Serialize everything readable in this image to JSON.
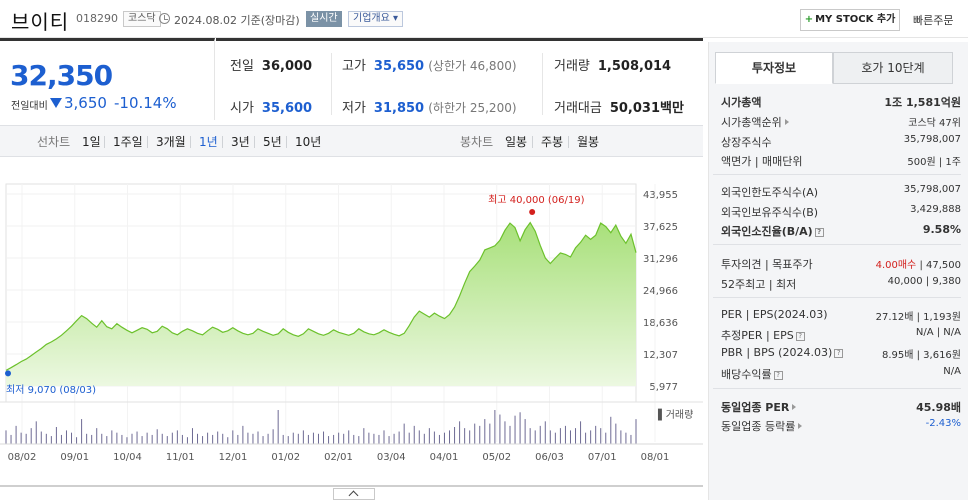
{
  "header": {
    "name": "브이티",
    "code": "018290",
    "market": "코스닥",
    "base_date": "2024.08.02 기준(장마감)",
    "realtime": "실시간",
    "overview": "기업개요 ▾",
    "mystock": "MY STOCK 추가",
    "mystock_plus": "+",
    "quick_order": "빠른주문"
  },
  "price": {
    "current": "32,350",
    "change_label": "전일대비",
    "change": "3,650",
    "change_pct": "-10.14%"
  },
  "quote": {
    "prev_close_label": "전일",
    "prev_close": "36,000",
    "high_label": "고가",
    "high": "35,650",
    "upper_limit": "(상한가 46,800)",
    "volume_label": "거래량",
    "volume": "1,508,014",
    "open_label": "시가",
    "open": "35,600",
    "low_label": "저가",
    "low": "31,850",
    "lower_limit": "(하한가 25,200)",
    "amount_label": "거래대금",
    "amount": "50,031",
    "amount_unit": "백만"
  },
  "periods": {
    "line_label": "선차트",
    "line_tabs": [
      "1일",
      "1주일",
      "3개월",
      "1년",
      "3년",
      "5년",
      "10년"
    ],
    "active": "1년",
    "candle_label": "봉차트",
    "candle_tabs": [
      "일봉",
      "주봉",
      "월봉"
    ]
  },
  "chart_data": {
    "type": "area",
    "y_ticks": [
      "43,955",
      "37,625",
      "31,296",
      "24,966",
      "18,636",
      "12,307",
      "5,977"
    ],
    "ylim": [
      5977,
      43955
    ],
    "x_ticks": [
      "08/02",
      "09/01",
      "10/04",
      "11/01",
      "12/01",
      "01/02",
      "02/01",
      "03/04",
      "04/01",
      "05/02",
      "06/03",
      "07/01",
      "08/01"
    ],
    "high_label": "최고 40,000 (06/19)",
    "low_label": "최저 9,070 (08/03)",
    "volume_label": "거래량",
    "series": [
      {
        "name": "",
        "values": [
          9070,
          9600,
          10200,
          10800,
          11300,
          12000,
          12700,
          13400,
          14200,
          14700,
          15300,
          16000,
          16900,
          17800,
          18900,
          19900,
          19300,
          18400,
          17600,
          18900,
          17700,
          17300,
          18300,
          17600,
          17000,
          16500,
          17000,
          17500,
          17200,
          16500,
          16800,
          17800,
          17300,
          16500,
          16100,
          16800,
          17300,
          16900,
          16400,
          16100,
          16900,
          17600,
          17200,
          16600,
          16900,
          17500,
          16900,
          16400,
          16100,
          16400,
          17300,
          16800,
          16400,
          16000,
          16300,
          17300,
          16600,
          16100,
          15800,
          16300,
          17300,
          16800,
          16300,
          16000,
          16400,
          17100,
          16600,
          16300,
          16000,
          16400,
          17300,
          16700,
          16300,
          16100,
          16500,
          17100,
          16600,
          16200,
          15900,
          16400,
          17900,
          19600,
          20800,
          20200,
          19600,
          20400,
          19800,
          19300,
          20100,
          21600,
          23800,
          26300,
          28600,
          29700,
          30900,
          32900,
          33300,
          33700,
          34800,
          36800,
          38200,
          37300,
          34700,
          36900,
          38300,
          36600,
          33800,
          31300,
          30200,
          31300,
          32300,
          32000,
          31500,
          33300,
          34400,
          35800,
          35000,
          35800,
          38200,
          37500,
          36300,
          37800,
          35600,
          34200,
          36000,
          32350
        ]
      }
    ],
    "volume": [
      12,
      8,
      16,
      10,
      9,
      14,
      20,
      11,
      9,
      7,
      15,
      8,
      12,
      10,
      6,
      22,
      9,
      8,
      14,
      9,
      7,
      12,
      10,
      8,
      6,
      9,
      11,
      7,
      10,
      8,
      13,
      9,
      7,
      10,
      12,
      8,
      6,
      14,
      9,
      7,
      10,
      8,
      11,
      9,
      6,
      12,
      8,
      16,
      10,
      9,
      11,
      7,
      9,
      13,
      30,
      8,
      7,
      10,
      9,
      12,
      8,
      10,
      9,
      11,
      7,
      8,
      10,
      9,
      12,
      8,
      7,
      14,
      10,
      9,
      8,
      12,
      7,
      9,
      11,
      18,
      10,
      16,
      12,
      9,
      14,
      11,
      8,
      10,
      12,
      15,
      20,
      14,
      12,
      18,
      16,
      22,
      18,
      30,
      26,
      20,
      16,
      25,
      28,
      22,
      14,
      12,
      16,
      20,
      12,
      10,
      14,
      16,
      12,
      14,
      20,
      10,
      12,
      16,
      14,
      10,
      24,
      18,
      12,
      10,
      8,
      22
    ]
  },
  "right_panel": {
    "tab_invest": "투자정보",
    "tab_orderbook": "호가 10단계",
    "market_cap_label": "시가총액",
    "market_cap": "1조 1,581억원",
    "cap_rank_label": "시가총액순위",
    "cap_rank": "코스닥 47위",
    "shares_label": "상장주식수",
    "shares": "35,798,007",
    "par_label": "액면가 | 매매단위",
    "par": "500원 | 1주",
    "foreign_limit_label": "외국인한도주식수(A)",
    "foreign_limit": "35,798,007",
    "foreign_hold_label": "외국인보유주식수(B)",
    "foreign_hold": "3,429,888",
    "foreign_ratio_label": "외국인소진율(B/A)",
    "foreign_ratio": "9.58%",
    "opinion_label": "투자의견 | 목표주가",
    "opinion": "4.00매수",
    "target": "| 47,500",
    "w52_label": "52주최고 | 최저",
    "w52": "40,000 | 9,380",
    "per_label": "PER | EPS(2024.03)",
    "per": "27.12배 | 1,193원",
    "est_per_label": "추정PER | EPS",
    "est_per": "N/A | N/A",
    "pbr_label": "PBR | BPS (2024.03)",
    "pbr": "8.95배 | 3,616원",
    "dividend_label": "배당수익률",
    "dividend": "N/A",
    "sector_per_label": "동일업종 PER",
    "sector_per": "45.98배",
    "sector_chg_label": "동일업종 등락률",
    "sector_chg": "-2.43%"
  }
}
